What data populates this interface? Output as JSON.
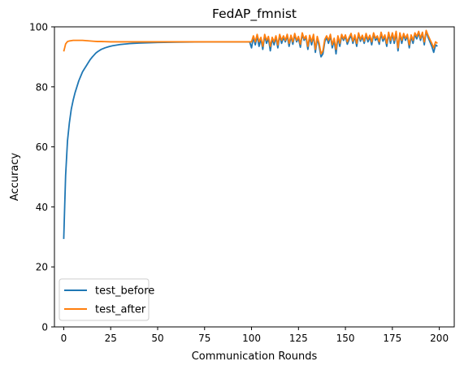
{
  "chart_data": {
    "type": "line",
    "title": "FedAP_fmnist",
    "xlabel": "Communication Rounds",
    "ylabel": "Accuracy",
    "xlim": [
      -4.95,
      207.95
    ],
    "ylim": [
      0,
      100
    ],
    "xticks": [
      0,
      25,
      50,
      75,
      100,
      125,
      150,
      175,
      200
    ],
    "yticks": [
      0,
      20,
      40,
      60,
      80,
      100
    ],
    "grid": false,
    "legend": "lower-left",
    "series": [
      {
        "name": "test_before",
        "color": "#1f77b4",
        "points": [
          [
            0,
            29.3
          ],
          [
            0.5,
            40
          ],
          [
            1,
            50.5
          ],
          [
            2,
            62
          ],
          [
            3,
            68
          ],
          [
            4,
            72.5
          ],
          [
            5,
            75.5
          ],
          [
            6,
            78
          ],
          [
            7,
            80
          ],
          [
            8,
            82
          ],
          [
            9,
            83.5
          ],
          [
            10,
            85
          ],
          [
            11,
            86
          ],
          [
            12,
            87
          ],
          [
            13,
            88
          ],
          [
            14,
            89
          ],
          [
            15,
            89.8
          ],
          [
            16,
            90.5
          ],
          [
            17,
            91.2
          ],
          [
            18,
            91.7
          ],
          [
            19,
            92.1
          ],
          [
            20,
            92.5
          ],
          [
            22,
            93
          ],
          [
            24,
            93.4
          ],
          [
            26,
            93.7
          ],
          [
            28,
            93.9
          ],
          [
            30,
            94.1
          ],
          [
            35,
            94.4
          ],
          [
            40,
            94.6
          ],
          [
            45,
            94.7
          ],
          [
            50,
            94.8
          ],
          [
            60,
            94.9
          ],
          [
            70,
            94.95
          ],
          [
            80,
            95
          ],
          [
            90,
            95
          ],
          [
            99,
            95
          ],
          [
            100,
            93
          ],
          [
            101,
            96.5
          ],
          [
            102,
            94
          ],
          [
            103,
            97
          ],
          [
            104,
            93.5
          ],
          [
            105,
            96
          ],
          [
            106,
            92.5
          ],
          [
            107,
            97
          ],
          [
            108,
            94.5
          ],
          [
            109,
            96.2
          ],
          [
            110,
            92
          ],
          [
            111,
            96
          ],
          [
            112,
            94
          ],
          [
            113,
            96.5
          ],
          [
            114,
            93
          ],
          [
            115,
            97.2
          ],
          [
            116,
            94.5
          ],
          [
            117,
            96.5
          ],
          [
            118,
            95
          ],
          [
            119,
            97
          ],
          [
            120,
            93.5
          ],
          [
            121,
            96.8
          ],
          [
            122,
            94.2
          ],
          [
            123,
            97.3
          ],
          [
            124,
            95
          ],
          [
            125,
            96.2
          ],
          [
            126,
            93.2
          ],
          [
            127,
            97.5
          ],
          [
            128,
            95.5
          ],
          [
            129,
            96.5
          ],
          [
            130,
            92.5
          ],
          [
            131,
            96.6
          ],
          [
            132,
            94
          ],
          [
            133,
            97
          ],
          [
            134,
            91.5
          ],
          [
            135,
            96.2
          ],
          [
            136,
            93.5
          ],
          [
            137,
            90
          ],
          [
            138,
            91
          ],
          [
            139,
            95
          ],
          [
            140,
            96.5
          ],
          [
            141,
            94.5
          ],
          [
            142,
            97
          ],
          [
            143,
            93
          ],
          [
            144,
            95.5
          ],
          [
            145,
            91
          ],
          [
            146,
            96.5
          ],
          [
            147,
            93.5
          ],
          [
            148,
            97
          ],
          [
            149,
            95.5
          ],
          [
            150,
            96.8
          ],
          [
            151,
            94.2
          ],
          [
            152,
            95.8
          ],
          [
            153,
            97.2
          ],
          [
            154,
            94.5
          ],
          [
            155,
            96.8
          ],
          [
            156,
            93.5
          ],
          [
            157,
            97.5
          ],
          [
            158,
            95.2
          ],
          [
            159,
            96.6
          ],
          [
            160,
            94.5
          ],
          [
            161,
            97.2
          ],
          [
            162,
            95
          ],
          [
            163,
            96.6
          ],
          [
            164,
            94
          ],
          [
            165,
            97.5
          ],
          [
            166,
            95.5
          ],
          [
            167,
            96.3
          ],
          [
            168,
            94.2
          ],
          [
            169,
            97.6
          ],
          [
            170,
            95.2
          ],
          [
            171,
            96.7
          ],
          [
            172,
            93.5
          ],
          [
            173,
            97.7
          ],
          [
            174,
            94.5
          ],
          [
            175,
            97.6
          ],
          [
            176,
            94.5
          ],
          [
            177,
            98
          ],
          [
            178,
            92
          ],
          [
            179,
            97.5
          ],
          [
            180,
            94.5
          ],
          [
            181,
            97.3
          ],
          [
            182,
            95.5
          ],
          [
            183,
            97
          ],
          [
            184,
            93
          ],
          [
            185,
            96.8
          ],
          [
            186,
            94.5
          ],
          [
            187,
            97.5
          ],
          [
            188,
            96
          ],
          [
            189,
            98
          ],
          [
            190,
            95.5
          ],
          [
            191,
            97.8
          ],
          [
            192,
            94
          ],
          [
            193,
            98.5
          ],
          [
            194,
            96.5
          ],
          [
            195,
            95
          ],
          [
            196,
            93.5
          ],
          [
            197,
            91.5
          ],
          [
            198,
            94
          ],
          [
            199,
            93.5
          ]
        ]
      },
      {
        "name": "test_after",
        "color": "#ff7f0e",
        "points": [
          [
            0,
            91.8
          ],
          [
            0.5,
            93
          ],
          [
            1,
            94.3
          ],
          [
            2,
            95.1
          ],
          [
            3,
            95.3
          ],
          [
            4,
            95.4
          ],
          [
            5,
            95.5
          ],
          [
            8,
            95.5
          ],
          [
            10,
            95.5
          ],
          [
            12,
            95.4
          ],
          [
            14,
            95.3
          ],
          [
            16,
            95.2
          ],
          [
            18,
            95.1
          ],
          [
            20,
            95.1
          ],
          [
            25,
            95
          ],
          [
            30,
            95
          ],
          [
            40,
            95
          ],
          [
            50,
            95
          ],
          [
            60,
            95
          ],
          [
            70,
            95
          ],
          [
            80,
            95
          ],
          [
            90,
            95
          ],
          [
            99,
            95
          ],
          [
            100,
            95
          ],
          [
            101,
            97
          ],
          [
            102,
            95
          ],
          [
            103,
            97.5
          ],
          [
            104,
            95
          ],
          [
            105,
            96.5
          ],
          [
            106,
            93.5
          ],
          [
            107,
            97.5
          ],
          [
            108,
            95.5
          ],
          [
            109,
            96.8
          ],
          [
            110,
            93.5
          ],
          [
            111,
            96.5
          ],
          [
            112,
            95
          ],
          [
            113,
            97
          ],
          [
            114,
            94
          ],
          [
            115,
            97.5
          ],
          [
            116,
            95.5
          ],
          [
            117,
            97
          ],
          [
            118,
            95.5
          ],
          [
            119,
            97.5
          ],
          [
            120,
            94.5
          ],
          [
            121,
            97.2
          ],
          [
            122,
            95
          ],
          [
            123,
            97.8
          ],
          [
            124,
            95.5
          ],
          [
            125,
            96.8
          ],
          [
            126,
            94.2
          ],
          [
            127,
            98
          ],
          [
            128,
            96
          ],
          [
            129,
            97
          ],
          [
            130,
            93.5
          ],
          [
            131,
            97.2
          ],
          [
            132,
            95
          ],
          [
            133,
            97.5
          ],
          [
            134,
            92.5
          ],
          [
            135,
            96.8
          ],
          [
            136,
            94.5
          ],
          [
            137,
            91
          ],
          [
            138,
            92
          ],
          [
            139,
            95.8
          ],
          [
            140,
            97
          ],
          [
            141,
            95.5
          ],
          [
            142,
            97.5
          ],
          [
            143,
            94
          ],
          [
            144,
            96.2
          ],
          [
            145,
            92.5
          ],
          [
            146,
            97
          ],
          [
            147,
            94.5
          ],
          [
            148,
            97.5
          ],
          [
            149,
            96
          ],
          [
            150,
            97.3
          ],
          [
            151,
            95
          ],
          [
            152,
            96.5
          ],
          [
            153,
            97.8
          ],
          [
            154,
            95.2
          ],
          [
            155,
            97.3
          ],
          [
            156,
            94.5
          ],
          [
            157,
            98
          ],
          [
            158,
            95.8
          ],
          [
            159,
            97.2
          ],
          [
            160,
            95.2
          ],
          [
            161,
            97.8
          ],
          [
            162,
            95.8
          ],
          [
            163,
            97.2
          ],
          [
            164,
            95
          ],
          [
            165,
            98
          ],
          [
            166,
            96.2
          ],
          [
            167,
            97
          ],
          [
            168,
            95
          ],
          [
            169,
            98.2
          ],
          [
            170,
            96
          ],
          [
            171,
            97.3
          ],
          [
            172,
            94.5
          ],
          [
            173,
            98.2
          ],
          [
            174,
            95.5
          ],
          [
            175,
            98
          ],
          [
            176,
            95.5
          ],
          [
            177,
            98.5
          ],
          [
            178,
            93
          ],
          [
            179,
            98
          ],
          [
            180,
            95.5
          ],
          [
            181,
            97.8
          ],
          [
            182,
            96.2
          ],
          [
            183,
            97.5
          ],
          [
            184,
            94
          ],
          [
            185,
            97.3
          ],
          [
            186,
            95.5
          ],
          [
            187,
            98
          ],
          [
            188,
            96.8
          ],
          [
            189,
            98.5
          ],
          [
            190,
            96.2
          ],
          [
            191,
            98.2
          ],
          [
            192,
            95
          ],
          [
            193,
            98.8
          ],
          [
            194,
            97.2
          ],
          [
            195,
            95.8
          ],
          [
            196,
            94.5
          ],
          [
            197,
            93
          ],
          [
            198,
            95
          ],
          [
            199,
            94.5
          ]
        ]
      }
    ]
  }
}
